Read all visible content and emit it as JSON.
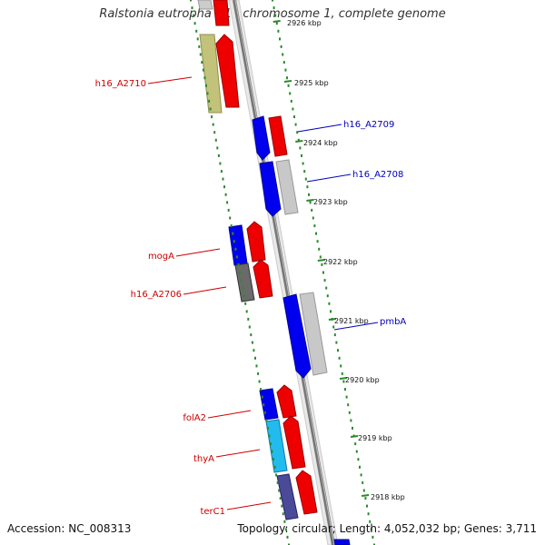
{
  "title": "Ralstonia eutropha H16 chromosome 1, complete genome",
  "accession": "Accession: NC_008313",
  "summary": "Topology: circular; Length: 4,052,032 bp; Genes: 3,711",
  "colors": {
    "label_forward": "#cc0000",
    "label_reverse": "#0000bb",
    "ruler": "#2a8a2a",
    "tick_text": "#111111"
  },
  "ticks": [
    {
      "label": "2926 kbp"
    },
    {
      "label": "2925 kbp"
    },
    {
      "label": "2924 kbp"
    },
    {
      "label": "2923 kbp"
    },
    {
      "label": "2922 kbp"
    },
    {
      "label": "2921 kbp"
    },
    {
      "label": "2920 kbp"
    },
    {
      "label": "2919 kbp"
    },
    {
      "label": "2918 kbp"
    }
  ],
  "gene_labels": [
    {
      "name": "h16_A2710",
      "strand": "forward"
    },
    {
      "name": "h16_A2709",
      "strand": "reverse"
    },
    {
      "name": "h16_A2708",
      "strand": "reverse"
    },
    {
      "name": "mogA",
      "strand": "forward"
    },
    {
      "name": "h16_A2706",
      "strand": "forward"
    },
    {
      "name": "pmbA",
      "strand": "reverse"
    },
    {
      "name": "folA2",
      "strand": "forward"
    },
    {
      "name": "thyA",
      "strand": "forward"
    },
    {
      "name": "terC1",
      "strand": "forward"
    }
  ]
}
